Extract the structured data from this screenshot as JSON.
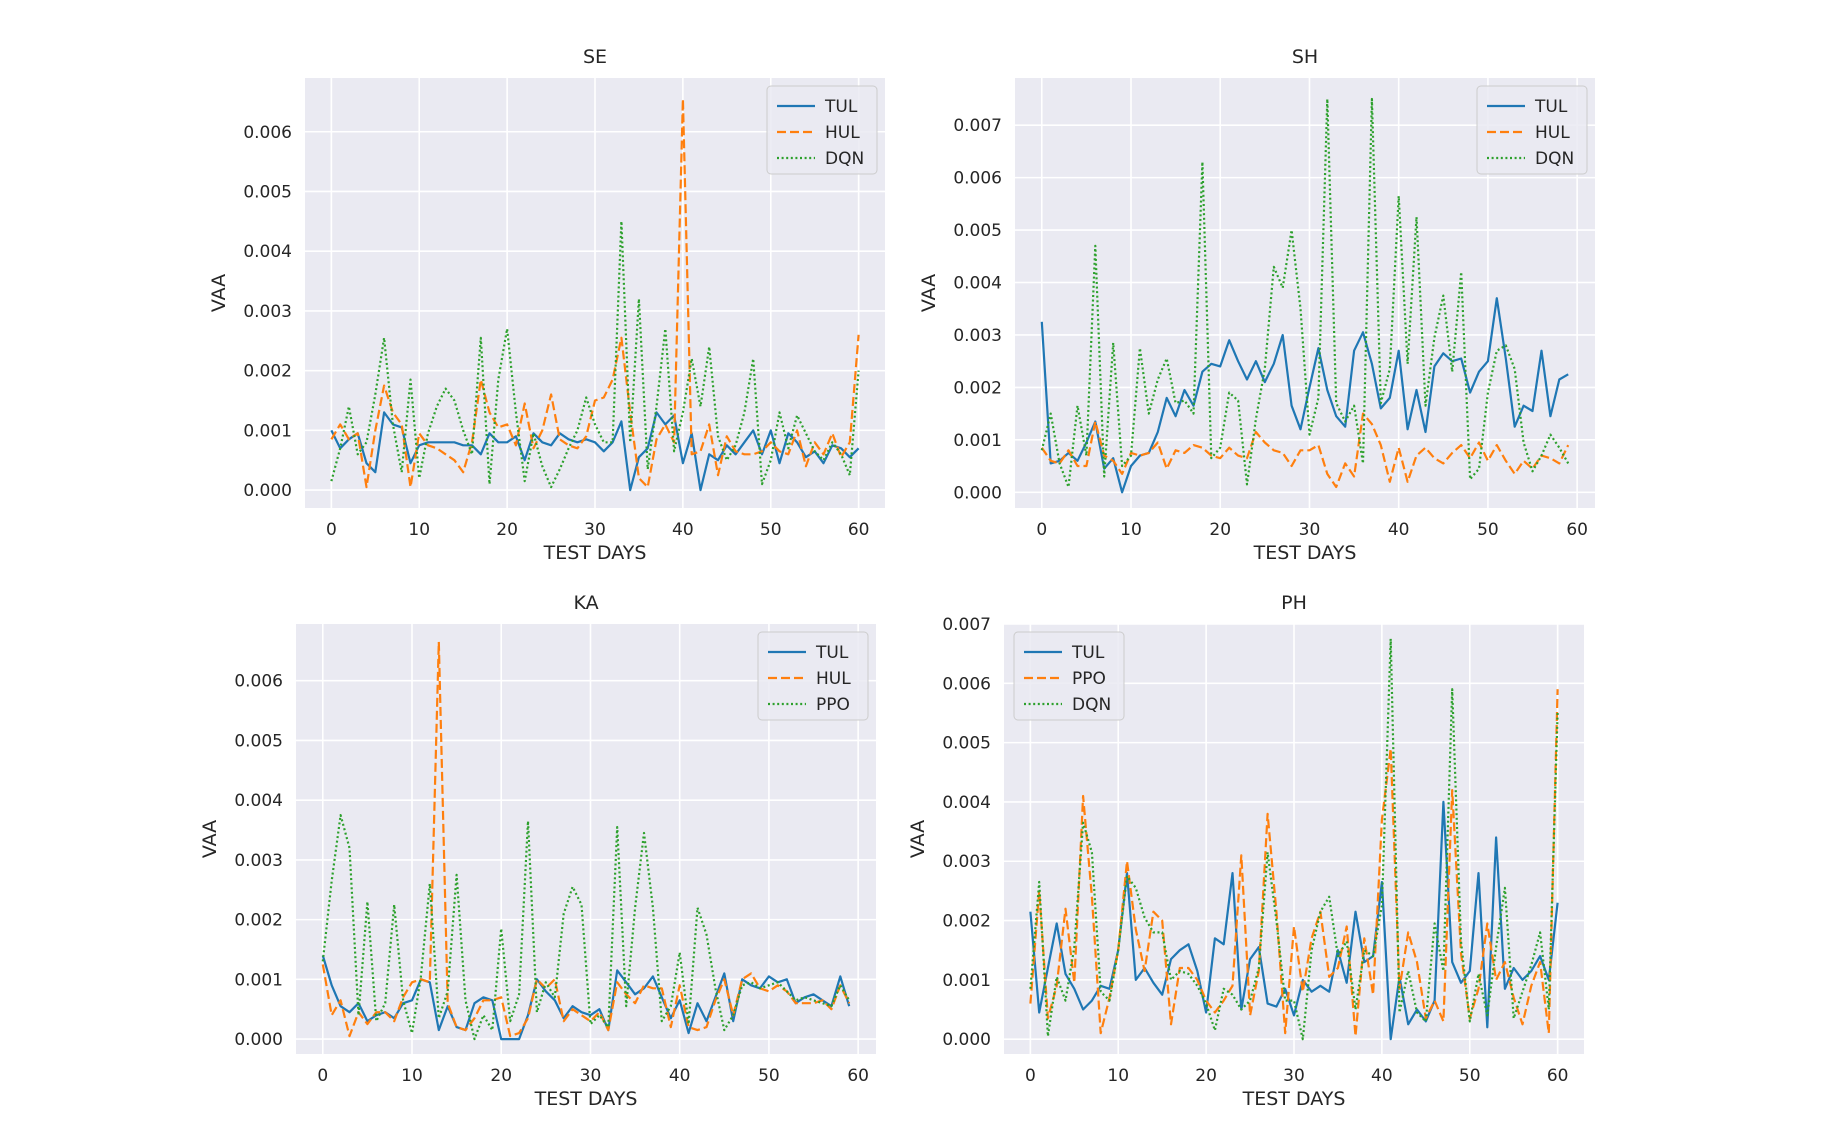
{
  "colors": {
    "TUL": "#1f77b4",
    "HUL": "#ff7f0e",
    "DQN": "#2ca02c",
    "PPO": "#2ca02c",
    "PPO_orange": "#ff7f0e",
    "panel_bg": "#eaeaf2",
    "grid": "#ffffff"
  },
  "chart_data": [
    {
      "type": "line",
      "title": "SE",
      "xlabel": "TEST DAYS",
      "ylabel": "VAA",
      "xlim": [
        -3,
        63
      ],
      "ylim": [
        -0.0003,
        0.0069
      ],
      "xticks": [
        0,
        10,
        20,
        30,
        40,
        50,
        60
      ],
      "yticks": [
        0.0,
        0.001,
        0.002,
        0.003,
        0.004,
        0.005,
        0.006
      ],
      "ytick_labels": [
        "0.000",
        "0.001",
        "0.002",
        "0.003",
        "0.004",
        "0.005",
        "0.006"
      ],
      "legend_position": "top-right",
      "grid": true,
      "series": [
        {
          "name": "TUL",
          "style": "solid",
          "color": "#1f77b4",
          "values": [
            0.001,
            0.0007,
            0.00085,
            0.00095,
            0.00045,
            0.0003,
            0.0013,
            0.0011,
            0.00105,
            0.00045,
            0.00075,
            0.0008,
            0.0008,
            0.0008,
            0.0008,
            0.00075,
            0.00075,
            0.0006,
            0.00095,
            0.0008,
            0.0008,
            0.0009,
            0.0005,
            0.00095,
            0.0008,
            0.00075,
            0.00095,
            0.00085,
            0.0008,
            0.00085,
            0.0008,
            0.00065,
            0.0008,
            0.00115,
            0.0,
            0.00055,
            0.0007,
            0.0013,
            0.0011,
            0.00125,
            0.00045,
            0.00095,
            0.0,
            0.0006,
            0.0005,
            0.00075,
            0.0006,
            0.0008,
            0.001,
            0.0006,
            0.001,
            0.00045,
            0.00095,
            0.0008,
            0.00055,
            0.00065,
            0.00045,
            0.00075,
            0.0007,
            0.00055,
            0.0007
          ]
        },
        {
          "name": "HUL",
          "style": "dashed",
          "color": "#ff7f0e",
          "values": [
            0.00085,
            0.0011,
            0.00085,
            0.00095,
            5e-05,
            0.001,
            0.00175,
            0.0013,
            0.0011,
            5e-05,
            0.00095,
            0.00075,
            0.0007,
            0.0006,
            0.0005,
            0.0003,
            0.0008,
            0.00185,
            0.0013,
            0.00105,
            0.0011,
            0.00075,
            0.00145,
            0.0007,
            0.001,
            0.0016,
            0.00085,
            0.00075,
            0.0007,
            0.0009,
            0.0015,
            0.00155,
            0.00185,
            0.00255,
            0.0013,
            0.0002,
            5e-05,
            0.00085,
            0.0011,
            0.0008,
            0.00655,
            0.0006,
            0.00065,
            0.0011,
            0.00025,
            0.0009,
            0.00065,
            0.0006,
            0.0006,
            0.00065,
            0.0008,
            0.00065,
            0.0006,
            0.001,
            0.0004,
            0.0008,
            0.0006,
            0.00095,
            0.00055,
            0.0008,
            0.0026
          ]
        },
        {
          "name": "DQN",
          "style": "dotted",
          "color": "#2ca02c",
          "values": [
            0.00015,
            0.0007,
            0.0014,
            0.0006,
            0.0008,
            0.0016,
            0.00255,
            0.0011,
            0.0003,
            0.00185,
            0.0002,
            0.00095,
            0.0014,
            0.0017,
            0.0015,
            0.001,
            0.0006,
            0.00255,
            0.0001,
            0.00185,
            0.0027,
            0.0013,
            0.00015,
            0.00095,
            0.0004,
            5e-05,
            0.00035,
            0.0007,
            0.001,
            0.00155,
            0.0011,
            0.0008,
            0.0008,
            0.0045,
            0.0008,
            0.0032,
            0.00035,
            0.0014,
            0.0027,
            0.00065,
            0.0013,
            0.0022,
            0.0014,
            0.0024,
            0.0009,
            0.0005,
            0.00075,
            0.0013,
            0.0022,
            0.0001,
            0.0005,
            0.0013,
            0.0007,
            0.00125,
            0.00095,
            0.00065,
            0.0005,
            0.0008,
            0.0006,
            0.00025,
            0.002
          ]
        }
      ]
    },
    {
      "type": "line",
      "title": "SH",
      "xlabel": "TEST DAYS",
      "ylabel": "VAA",
      "xlim": [
        -3,
        62
      ],
      "ylim": [
        -0.0003,
        0.0079
      ],
      "xticks": [
        0,
        10,
        20,
        30,
        40,
        50,
        60
      ],
      "yticks": [
        0.0,
        0.001,
        0.002,
        0.003,
        0.004,
        0.005,
        0.006,
        0.007
      ],
      "ytick_labels": [
        "0.000",
        "0.001",
        "0.002",
        "0.003",
        "0.004",
        "0.005",
        "0.006",
        "0.007"
      ],
      "legend_position": "top-right",
      "grid": true,
      "series": [
        {
          "name": "TUL",
          "style": "solid",
          "color": "#1f77b4",
          "values": [
            0.00325,
            0.00055,
            0.0006,
            0.00075,
            0.0006,
            0.00095,
            0.00135,
            0.00045,
            0.00065,
            0.0,
            0.0005,
            0.0007,
            0.00075,
            0.00115,
            0.0018,
            0.00145,
            0.00195,
            0.00165,
            0.0023,
            0.00245,
            0.0024,
            0.0029,
            0.0025,
            0.00215,
            0.0025,
            0.0021,
            0.00245,
            0.003,
            0.00165,
            0.0012,
            0.002,
            0.00275,
            0.00195,
            0.00145,
            0.00125,
            0.0027,
            0.00305,
            0.00245,
            0.0016,
            0.0018,
            0.0027,
            0.0012,
            0.00195,
            0.00115,
            0.0024,
            0.00265,
            0.0025,
            0.00255,
            0.0019,
            0.0023,
            0.0025,
            0.0037,
            0.00255,
            0.00125,
            0.00165,
            0.00155,
            0.0027,
            0.00145,
            0.00215,
            0.00225
          ]
        },
        {
          "name": "HUL",
          "style": "dashed",
          "color": "#ff7f0e",
          "values": [
            0.00085,
            0.0006,
            0.00055,
            0.0008,
            0.0005,
            0.0005,
            0.00135,
            0.0007,
            0.0006,
            0.00035,
            0.00075,
            0.0007,
            0.00075,
            0.00095,
            0.00045,
            0.0008,
            0.00075,
            0.0009,
            0.00085,
            0.0007,
            0.00065,
            0.00085,
            0.0007,
            0.00065,
            0.00115,
            0.00095,
            0.0008,
            0.00075,
            0.0005,
            0.0008,
            0.0008,
            0.0009,
            0.00035,
            0.0001,
            0.00055,
            0.0003,
            0.0015,
            0.0013,
            0.0009,
            0.0002,
            0.00085,
            0.0002,
            0.0007,
            0.00085,
            0.00065,
            0.00055,
            0.00075,
            0.0009,
            0.00065,
            0.00095,
            0.0006,
            0.0009,
            0.0006,
            0.00035,
            0.0006,
            0.00045,
            0.0007,
            0.00065,
            0.00055,
            0.0009
          ]
        },
        {
          "name": "DQN",
          "style": "dotted",
          "color": "#2ca02c",
          "values": [
            0.0008,
            0.0015,
            0.00055,
            0.0001,
            0.00165,
            0.0007,
            0.0047,
            0.0003,
            0.00285,
            0.0005,
            0.0007,
            0.00275,
            0.0015,
            0.00215,
            0.00255,
            0.0017,
            0.00175,
            0.0015,
            0.0063,
            0.00065,
            0.00085,
            0.0019,
            0.00175,
            0.00015,
            0.0014,
            0.00235,
            0.0043,
            0.0039,
            0.005,
            0.0035,
            0.0011,
            0.0018,
            0.0075,
            0.0017,
            0.00135,
            0.00165,
            0.00055,
            0.0075,
            0.0017,
            0.00235,
            0.00565,
            0.00245,
            0.00525,
            0.00165,
            0.00295,
            0.00375,
            0.0023,
            0.0042,
            0.00025,
            0.00045,
            0.0019,
            0.0027,
            0.0028,
            0.00235,
            0.00095,
            0.0004,
            0.0007,
            0.0011,
            0.00085,
            0.00055
          ]
        }
      ]
    },
    {
      "type": "line",
      "title": "KA",
      "xlabel": "TEST DAYS",
      "ylabel": "VAA",
      "xlim": [
        -3,
        62
      ],
      "ylim": [
        -0.00025,
        0.00695
      ],
      "xticks": [
        0,
        10,
        20,
        30,
        40,
        50,
        60
      ],
      "yticks": [
        0.0,
        0.001,
        0.002,
        0.003,
        0.004,
        0.005,
        0.006
      ],
      "ytick_labels": [
        "0.000",
        "0.001",
        "0.002",
        "0.003",
        "0.004",
        "0.005",
        "0.006"
      ],
      "legend_position": "top-right",
      "grid": true,
      "series": [
        {
          "name": "TUL",
          "style": "solid",
          "color": "#1f77b4",
          "values": [
            0.0014,
            0.0009,
            0.00055,
            0.00045,
            0.0006,
            0.0003,
            0.0004,
            0.00045,
            0.00035,
            0.0006,
            0.00065,
            0.001,
            0.00095,
            0.00015,
            0.00055,
            0.0002,
            0.00015,
            0.0006,
            0.0007,
            0.00065,
            0.0,
            0.0,
            0.0,
            0.0004,
            0.001,
            0.0008,
            0.00065,
            0.00035,
            0.00055,
            0.00045,
            0.0004,
            0.0005,
            0.00015,
            0.00115,
            0.00095,
            0.00075,
            0.00085,
            0.00105,
            0.0007,
            0.00035,
            0.00065,
            0.0001,
            0.0006,
            0.0003,
            0.0007,
            0.0011,
            0.0003,
            0.001,
            0.0009,
            0.00085,
            0.00105,
            0.00095,
            0.001,
            0.0006,
            0.0007,
            0.00075,
            0.00065,
            0.00055,
            0.00105,
            0.00055
          ]
        },
        {
          "name": "HUL",
          "style": "dashed",
          "color": "#ff7f0e",
          "values": [
            0.00125,
            0.0004,
            0.00065,
            5e-05,
            0.00045,
            0.00025,
            0.00045,
            0.00045,
            0.0003,
            0.0007,
            0.00095,
            0.001,
            0.00095,
            0.00665,
            0.0006,
            0.0002,
            0.00015,
            0.00035,
            0.00065,
            0.00065,
            0.0007,
            5e-05,
            0.0001,
            0.00035,
            0.001,
            0.00085,
            0.001,
            0.0003,
            0.0005,
            0.0004,
            0.0003,
            0.00045,
            0.00015,
            0.00095,
            0.00075,
            0.0006,
            0.0009,
            0.00085,
            0.00085,
            0.0002,
            0.0009,
            0.0002,
            0.00015,
            0.0002,
            0.00065,
            0.001,
            0.0004,
            0.001,
            0.0011,
            0.00085,
            0.0008,
            0.0009,
            0.0008,
            0.0006,
            0.0006,
            0.0006,
            0.00065,
            0.0005,
            0.0009,
            0.0006
          ]
        },
        {
          "name": "PPO",
          "style": "dotted",
          "color": "#2ca02c",
          "values": [
            0.0013,
            0.00265,
            0.00375,
            0.0032,
            0.0004,
            0.0023,
            0.0003,
            0.0006,
            0.00225,
            0.00065,
            0.0001,
            0.00105,
            0.0026,
            0.00035,
            0.0008,
            0.00275,
            0.00065,
            0.0,
            0.0004,
            0.00015,
            0.00185,
            0.0003,
            0.00075,
            0.00365,
            0.00045,
            0.00095,
            0.0007,
            0.0021,
            0.00255,
            0.00225,
            0.00025,
            0.0004,
            0.0002,
            0.00355,
            0.00055,
            0.0022,
            0.00345,
            0.0022,
            0.0003,
            0.00055,
            0.00145,
            0.00025,
            0.0022,
            0.00175,
            0.00085,
            0.00015,
            0.0004,
            0.0009,
            0.00095,
            0.00085,
            0.0009,
            0.00095,
            0.0008,
            0.00065,
            0.0007,
            0.00065,
            0.0006,
            0.00055,
            0.0009,
            0.00065
          ]
        }
      ]
    },
    {
      "type": "line",
      "title": "PH",
      "xlabel": "TEST DAYS",
      "ylabel": "VAA",
      "xlim": [
        -3,
        63
      ],
      "ylim": [
        -0.00025,
        0.007
      ],
      "xticks": [
        0,
        10,
        20,
        30,
        40,
        50,
        60
      ],
      "yticks": [
        0.0,
        0.001,
        0.002,
        0.003,
        0.004,
        0.005,
        0.006,
        0.007
      ],
      "ytick_labels": [
        "0.000",
        "0.001",
        "0.002",
        "0.003",
        "0.004",
        "0.005",
        "0.006",
        "0.007"
      ],
      "legend_position": "top-left",
      "grid": true,
      "series": [
        {
          "name": "TUL",
          "style": "solid",
          "color": "#1f77b4",
          "values": [
            0.00215,
            0.00045,
            0.0012,
            0.00195,
            0.0011,
            0.00085,
            0.0005,
            0.00065,
            0.0009,
            0.00085,
            0.0015,
            0.0028,
            0.001,
            0.0012,
            0.00095,
            0.00075,
            0.00135,
            0.0015,
            0.0016,
            0.00115,
            0.00045,
            0.0017,
            0.0016,
            0.0028,
            0.0005,
            0.00135,
            0.00155,
            0.0006,
            0.00055,
            0.00085,
            0.0004,
            0.001,
            0.0008,
            0.0009,
            0.0008,
            0.0015,
            0.00095,
            0.00215,
            0.0013,
            0.0014,
            0.00265,
            0.0,
            0.00105,
            0.00025,
            0.0005,
            0.0003,
            0.00065,
            0.004,
            0.0013,
            0.00095,
            0.00115,
            0.0028,
            0.0002,
            0.0034,
            0.00085,
            0.0012,
            0.001,
            0.00115,
            0.0014,
            0.001,
            0.0023
          ]
        },
        {
          "name": "PPO",
          "style": "dashed",
          "color": "#ff7f0e",
          "values": [
            0.0006,
            0.0025,
            0.00035,
            0.0009,
            0.0022,
            0.00095,
            0.0041,
            0.0024,
            0.0001,
            0.0007,
            0.0015,
            0.003,
            0.00185,
            0.00115,
            0.00215,
            0.002,
            0.00025,
            0.0012,
            0.0012,
            0.001,
            0.00065,
            0.00045,
            0.00065,
            0.0009,
            0.0031,
            0.0004,
            0.00115,
            0.0038,
            0.00215,
            0.0001,
            0.0019,
            0.0008,
            0.0017,
            0.00215,
            0.00105,
            0.0012,
            0.0019,
            5e-05,
            0.0017,
            0.00075,
            0.0037,
            0.0049,
            0.00085,
            0.0018,
            0.0013,
            0.00035,
            0.00065,
            0.0003,
            0.0042,
            0.00145,
            0.00035,
            0.00085,
            0.00195,
            0.001,
            0.0013,
            0.0007,
            0.00025,
            0.0009,
            0.0013,
            0.0001,
            0.0059
          ]
        },
        {
          "name": "DQN",
          "style": "dotted",
          "color": "#2ca02c",
          "values": [
            0.00085,
            0.00265,
            5e-05,
            0.00105,
            0.00065,
            0.00155,
            0.00365,
            0.00315,
            0.0008,
            0.00065,
            0.0015,
            0.00275,
            0.00255,
            0.00205,
            0.0018,
            0.0018,
            0.001,
            0.00115,
            0.0011,
            0.0009,
            0.0006,
            0.00015,
            0.00085,
            0.00075,
            0.0005,
            0.00065,
            0.0012,
            0.00315,
            0.002,
            0.00065,
            0.00065,
            0.0,
            0.0015,
            0.00215,
            0.0024,
            0.0014,
            0.00165,
            0.0005,
            0.0015,
            0.0014,
            0.00225,
            0.00675,
            0.00045,
            0.00115,
            0.00045,
            0.0003,
            0.00195,
            0.00115,
            0.0059,
            0.00165,
            0.0003,
            0.0011,
            0.0004,
            0.00155,
            0.00255,
            0.00035,
            0.0008,
            0.00125,
            0.0018,
            0.0005,
            0.0055
          ]
        }
      ]
    }
  ]
}
